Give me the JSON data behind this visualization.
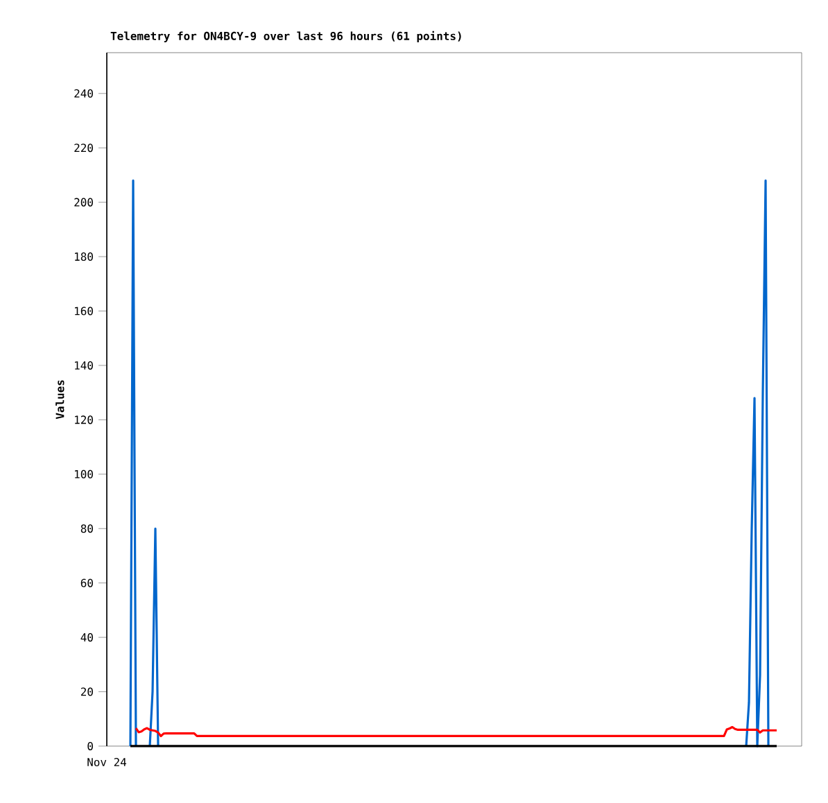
{
  "chart_data": {
    "type": "line",
    "title": "Telemetry for ON4BCY-9 over last 96 hours (61 points)",
    "ylabel": "Values",
    "annotations": [
      "Nov 24"
    ],
    "categories": [
      null,
      null,
      null,
      null,
      null,
      null,
      null,
      null,
      null,
      null,
      null,
      null,
      null,
      null,
      null,
      null,
      null,
      null,
      null,
      null,
      null,
      null,
      null,
      null,
      null,
      null,
      null,
      null,
      null,
      null,
      null,
      null,
      null,
      null,
      null,
      null,
      null,
      null,
      null,
      null,
      null,
      null,
      null,
      null,
      null,
      null,
      null,
      null,
      null,
      null,
      null,
      null,
      null,
      null,
      null,
      null,
      null,
      null,
      null,
      null,
      null,
      null,
      null,
      null,
      null,
      null,
      null,
      null,
      null,
      null,
      null,
      null,
      null,
      null,
      null,
      null,
      null,
      null,
      null,
      null,
      null,
      null,
      null,
      null,
      null,
      null,
      null,
      null,
      null,
      null,
      null,
      null,
      null,
      null,
      null,
      null,
      null,
      null,
      null,
      null,
      null,
      null,
      null,
      null,
      null,
      null,
      null,
      null,
      null,
      null,
      null,
      null,
      null,
      null,
      null,
      null,
      null,
      null,
      null,
      null,
      null,
      null,
      null,
      null,
      null,
      null,
      null,
      null,
      null,
      null,
      null,
      null,
      null,
      null,
      null,
      null,
      null,
      null,
      null,
      null,
      null,
      null,
      null,
      null,
      null,
      null,
      null,
      null,
      null,
      null,
      null,
      null,
      null,
      null,
      null,
      null,
      null,
      null,
      null,
      null,
      null,
      null,
      null,
      null,
      null,
      null,
      null,
      null,
      null,
      null,
      null,
      null,
      null,
      null,
      null,
      null,
      null,
      null,
      null,
      null,
      null,
      null,
      null,
      null,
      null,
      null,
      null,
      null,
      null,
      null,
      null,
      null,
      null,
      null,
      null,
      null,
      null,
      null,
      null,
      null,
      null,
      null,
      null,
      null,
      null,
      null,
      null,
      null,
      null,
      null,
      null,
      null,
      null,
      null,
      null,
      null,
      null,
      null,
      null,
      null,
      null,
      null,
      null,
      null,
      null,
      null,
      null,
      null,
      null,
      null,
      null,
      null,
      null,
      null
    ],
    "ylim": [
      0,
      255
    ],
    "yticks": [
      0,
      20,
      40,
      60,
      80,
      100,
      120,
      140,
      160,
      180,
      200,
      220,
      240
    ],
    "line_style": "solid",
    "series": [
      {
        "color": "#0066cc",
        "values": [
          0,
          208,
          0,
          null,
          null,
          null,
          null,
          0,
          20,
          80,
          0,
          null,
          null,
          null,
          null,
          null,
          null,
          null,
          null,
          null,
          null,
          null,
          null,
          null,
          null,
          null,
          null,
          null,
          null,
          null,
          null,
          null,
          null,
          null,
          null,
          null,
          null,
          null,
          null,
          null,
          null,
          null,
          null,
          null,
          null,
          null,
          null,
          null,
          null,
          null,
          null,
          null,
          null,
          null,
          null,
          null,
          null,
          null,
          null,
          null,
          null,
          null,
          null,
          null,
          null,
          null,
          null,
          null,
          null,
          null,
          null,
          null,
          null,
          null,
          null,
          null,
          null,
          null,
          null,
          null,
          null,
          null,
          null,
          null,
          null,
          null,
          null,
          null,
          null,
          null,
          null,
          null,
          null,
          null,
          null,
          null,
          null,
          null,
          null,
          null,
          null,
          null,
          null,
          null,
          null,
          null,
          null,
          null,
          null,
          null,
          null,
          null,
          null,
          null,
          null,
          null,
          null,
          null,
          null,
          null,
          null,
          null,
          null,
          null,
          null,
          null,
          null,
          null,
          null,
          null,
          null,
          null,
          null,
          null,
          null,
          null,
          null,
          null,
          null,
          null,
          null,
          null,
          null,
          null,
          null,
          null,
          null,
          null,
          null,
          null,
          null,
          null,
          null,
          null,
          null,
          null,
          null,
          null,
          null,
          null,
          null,
          null,
          null,
          null,
          null,
          null,
          null,
          null,
          null,
          null,
          null,
          null,
          null,
          null,
          null,
          null,
          null,
          null,
          null,
          null,
          null,
          null,
          null,
          null,
          null,
          null,
          null,
          null,
          null,
          null,
          null,
          null,
          null,
          null,
          null,
          null,
          null,
          null,
          null,
          null,
          null,
          null,
          null,
          null,
          null,
          null,
          null,
          null,
          null,
          null,
          null,
          null,
          null,
          null,
          null,
          null,
          null,
          null,
          null,
          null,
          null,
          null,
          0,
          16,
          80,
          128,
          0,
          26,
          130,
          208,
          0,
          null,
          null,
          null
        ]
      },
      {
        "color": "#ff0000",
        "values": [
          null,
          null,
          6.6,
          5.1,
          5.4,
          6.2,
          6.6,
          6.0,
          5.8,
          5.6,
          5.0,
          3.7,
          4.6,
          4.7,
          4.7,
          4.7,
          4.7,
          4.7,
          4.7,
          4.7,
          4.7,
          4.7,
          4.7,
          4.7,
          3.7,
          3.7,
          3.7,
          3.7,
          3.7,
          3.7,
          3.7,
          3.7,
          3.7,
          3.7,
          3.7,
          3.7,
          3.7,
          3.7,
          3.7,
          3.7,
          3.7,
          3.7,
          3.7,
          3.7,
          3.7,
          3.7,
          3.7,
          3.7,
          3.7,
          3.7,
          3.7,
          3.7,
          3.7,
          3.7,
          3.7,
          3.7,
          3.7,
          3.7,
          3.7,
          3.7,
          3.7,
          3.7,
          3.7,
          3.7,
          3.7,
          3.7,
          3.7,
          3.7,
          3.7,
          3.7,
          3.7,
          3.7,
          3.7,
          3.7,
          3.7,
          3.7,
          3.7,
          3.7,
          3.7,
          3.7,
          3.7,
          3.7,
          3.7,
          3.7,
          3.7,
          3.7,
          3.7,
          3.7,
          3.7,
          3.7,
          3.7,
          3.7,
          3.7,
          3.7,
          3.7,
          3.7,
          3.7,
          3.7,
          3.7,
          3.7,
          3.7,
          3.7,
          3.7,
          3.7,
          3.7,
          3.7,
          3.7,
          3.7,
          3.7,
          3.7,
          3.7,
          3.7,
          3.7,
          3.7,
          3.7,
          3.7,
          3.7,
          3.7,
          3.7,
          3.7,
          3.7,
          3.7,
          3.7,
          3.7,
          3.7,
          3.7,
          3.7,
          3.7,
          3.7,
          3.7,
          3.7,
          3.7,
          3.7,
          3.7,
          3.7,
          3.7,
          3.7,
          3.7,
          3.7,
          3.7,
          3.7,
          3.7,
          3.7,
          3.7,
          3.7,
          3.7,
          3.7,
          3.7,
          3.7,
          3.7,
          3.7,
          3.7,
          3.7,
          3.7,
          3.7,
          3.7,
          3.7,
          3.7,
          3.7,
          3.7,
          3.7,
          3.7,
          3.7,
          3.7,
          3.7,
          3.7,
          3.7,
          3.7,
          3.7,
          3.7,
          3.7,
          3.7,
          3.7,
          3.7,
          3.7,
          3.7,
          3.7,
          3.7,
          3.7,
          3.7,
          3.7,
          3.7,
          3.7,
          3.7,
          3.7,
          3.7,
          3.7,
          3.7,
          3.7,
          3.7,
          3.7,
          3.7,
          3.7,
          3.7,
          3.7,
          3.7,
          3.7,
          3.7,
          3.7,
          3.7,
          3.7,
          3.7,
          3.7,
          3.7,
          3.7,
          3.7,
          3.7,
          3.7,
          3.7,
          3.7,
          3.7,
          3.7,
          3.7,
          3.7,
          3.7,
          6.1,
          6.5,
          7.0,
          6.3,
          6.0,
          6.0,
          6.0,
          6.0,
          6.0,
          6.0,
          6.0,
          6.0,
          5.0,
          5.8,
          5.8,
          5.8,
          5.8,
          5.8,
          5.8
        ]
      },
      {
        "color": "#000000",
        "values": [
          0,
          0,
          0,
          0,
          0,
          0,
          0,
          0,
          0,
          0,
          0,
          0,
          0,
          0,
          0,
          0,
          0,
          0,
          0,
          0,
          0,
          0,
          0,
          0,
          0,
          0,
          0,
          0,
          0,
          0,
          0,
          0,
          0,
          0,
          0,
          0,
          0,
          0,
          0,
          0,
          0,
          0,
          0,
          0,
          0,
          0,
          0,
          0,
          0,
          0,
          0,
          0,
          0,
          0,
          0,
          0,
          0,
          0,
          0,
          0,
          0,
          0,
          0,
          0,
          0,
          0,
          0,
          0,
          0,
          0,
          0,
          0,
          0,
          0,
          0,
          0,
          0,
          0,
          0,
          0,
          0,
          0,
          0,
          0,
          0,
          0,
          0,
          0,
          0,
          0,
          0,
          0,
          0,
          0,
          0,
          0,
          0,
          0,
          0,
          0,
          0,
          0,
          0,
          0,
          0,
          0,
          0,
          0,
          0,
          0,
          0,
          0,
          0,
          0,
          0,
          0,
          0,
          0,
          0,
          0,
          0,
          0,
          0,
          0,
          0,
          0,
          0,
          0,
          0,
          0,
          0,
          0,
          0,
          0,
          0,
          0,
          0,
          0,
          0,
          0,
          0,
          0,
          0,
          0,
          0,
          0,
          0,
          0,
          0,
          0,
          0,
          0,
          0,
          0,
          0,
          0,
          0,
          0,
          0,
          0,
          0,
          0,
          0,
          0,
          0,
          0,
          0,
          0,
          0,
          0,
          0,
          0,
          0,
          0,
          0,
          0,
          0,
          0,
          0,
          0,
          0,
          0,
          0,
          0,
          0,
          0,
          0,
          0,
          0,
          0,
          0,
          0,
          0,
          0,
          0,
          0,
          0,
          0,
          0,
          0,
          0,
          0,
          0,
          0,
          0,
          0,
          0,
          0,
          0,
          0,
          0,
          0,
          0,
          0,
          0,
          0,
          0,
          0,
          0,
          0,
          0,
          0,
          0,
          0,
          0,
          0,
          0,
          0,
          0,
          0,
          0,
          0,
          0,
          0
        ]
      }
    ]
  }
}
